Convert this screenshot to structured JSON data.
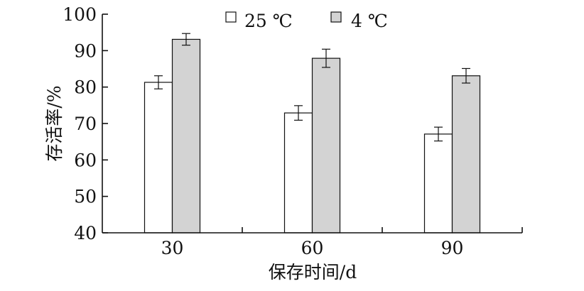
{
  "chart_data": {
    "type": "bar",
    "title": "",
    "xlabel": "保存时间/d",
    "ylabel": "存活率/%",
    "categories": [
      "30",
      "60",
      "90"
    ],
    "ylim": [
      40,
      100
    ],
    "yticks": [
      "40",
      "50",
      "60",
      "70",
      "80",
      "90",
      "100"
    ],
    "grid": false,
    "legend_position": "top",
    "series": [
      {
        "name": "25 ℃",
        "values": [
          81.3,
          72.9,
          67.1
        ],
        "errors": [
          1.8,
          2.0,
          1.9
        ],
        "color": "#ffffff"
      },
      {
        "name": "4 ℃",
        "values": [
          93.1,
          87.9,
          83.1
        ],
        "errors": [
          1.6,
          2.5,
          2.0
        ],
        "color": "#d3d3d3"
      }
    ]
  }
}
